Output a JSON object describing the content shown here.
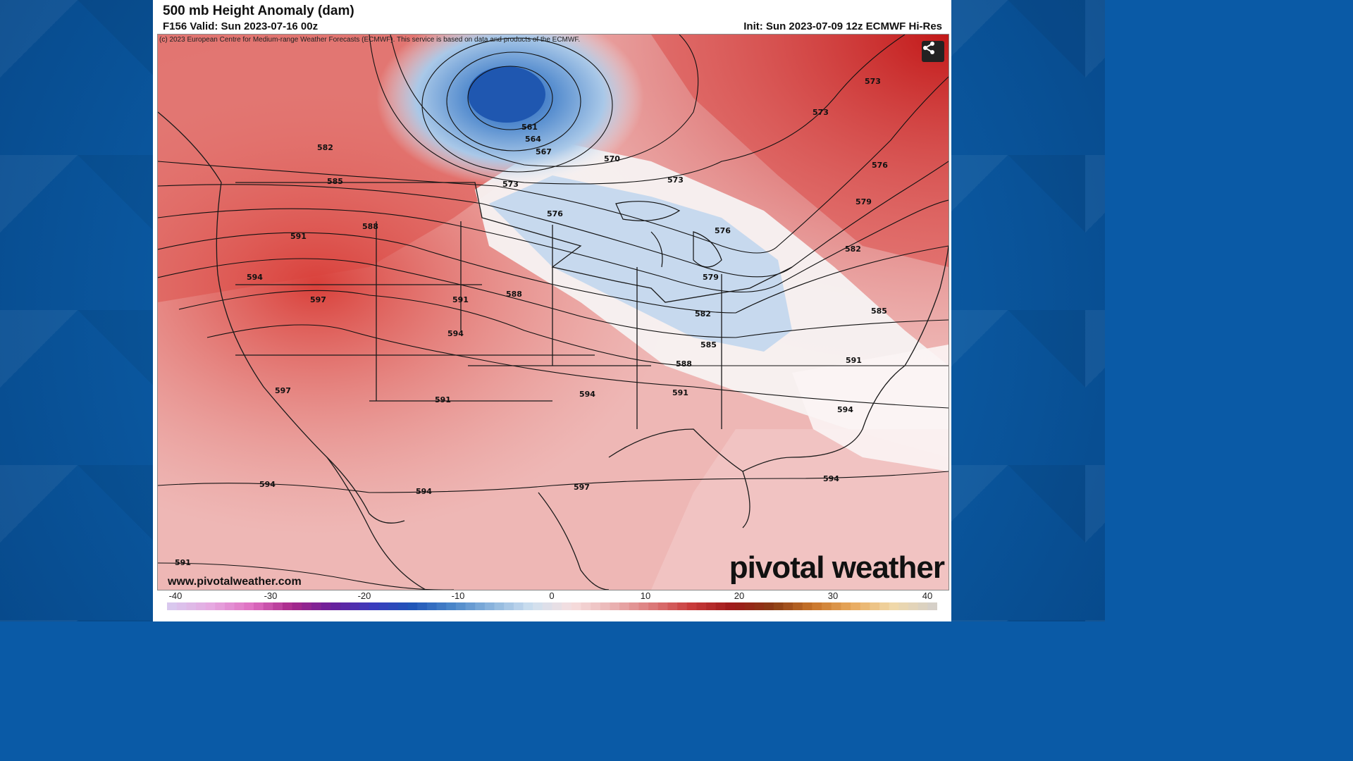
{
  "header": {
    "title": "500 mb Height Anomaly (dam)",
    "valid": "F156 Valid: Sun 2023-07-16 00z",
    "init": "Init: Sun 2023-07-09 12z ECMWF Hi-Res"
  },
  "map": {
    "copyright": "(c) 2023 European Centre for Medium-range Weather Forecasts (ECMWF). This service is based on data and products of the ECMWF.",
    "share_icon": "share-icon",
    "website": "www.pivotalweather.com",
    "brand": "pivotal weather",
    "contour_labels": [
      "561",
      "564",
      "567",
      "570",
      "573",
      "573",
      "573",
      "573",
      "576",
      "576",
      "576",
      "579",
      "579",
      "582",
      "582",
      "582",
      "585",
      "585",
      "585",
      "588",
      "588",
      "588",
      "591",
      "591",
      "591",
      "591",
      "594",
      "594",
      "594",
      "594",
      "594",
      "594",
      "594",
      "597",
      "597",
      "597",
      "591",
      "591"
    ]
  },
  "colorbar": {
    "ticks": [
      "-40",
      "-30",
      "-20",
      "-10",
      "0",
      "10",
      "20",
      "30",
      "40"
    ],
    "colors_negative": [
      "#d9c8ee",
      "#e6a8e0",
      "#e070c2",
      "#a8288a",
      "#6a1f9a",
      "#3b3bbd",
      "#1f55b8",
      "#4a86c9",
      "#8cb5dd",
      "#cfe0f0"
    ],
    "colors_positive": [
      "#f6dede",
      "#eab4b4",
      "#dc7a7a",
      "#c83a3a",
      "#9e1a1a",
      "#8a3b14",
      "#c8742a",
      "#e8aa5e",
      "#f1d8a8",
      "#d6d0c8"
    ]
  }
}
